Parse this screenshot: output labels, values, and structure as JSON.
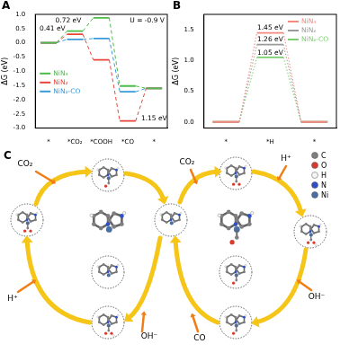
{
  "chart_data": [
    {
      "panel": "A",
      "type": "line",
      "subtitle": "U = -0.9 V",
      "y_label": "ΔG (eV)",
      "categories": [
        "*",
        "*CO₂",
        "*COOH",
        "*CO",
        "*"
      ],
      "series": [
        {
          "name": "NiN₄",
          "color": "#4cbb47",
          "line_style": "dashed",
          "values": [
            0,
            0.41,
            0.88,
            -1.52,
            -1.6
          ]
        },
        {
          "name": "NiN₂",
          "color": "#e8443a",
          "line_style": "dashed",
          "values": [
            0,
            0.3,
            -0.6,
            -2.75,
            -1.6
          ]
        },
        {
          "name": "NiN₂-CO",
          "color": "#3a9ad9",
          "line_style": "dashed",
          "values": [
            0,
            0.12,
            0.15,
            -1.72,
            -1.6
          ]
        }
      ],
      "ylim": [
        -3,
        1
      ],
      "yticks": [
        {
          "value": -3,
          "label": "-3.0"
        },
        -2.5,
        {
          "value": -2,
          "label": "-2.0"
        },
        -1.5,
        {
          "value": -1,
          "label": "-1.0"
        },
        -0.5,
        {
          "value": 0,
          "label": "0.0"
        },
        0.5,
        {
          "value": 1,
          "label": "1.0"
        }
      ],
      "annotations": [
        "0.41 eV",
        "0.72 eV",
        "1.15 eV"
      ],
      "legend": "center left",
      "grid": false
    },
    {
      "panel": "B",
      "type": "line",
      "y_label": "ΔG (eV)",
      "categories": [
        "*",
        "*H",
        "*"
      ],
      "series": [
        {
          "name": "NiN₄",
          "color": "#f4897e",
          "line_style": "dotted",
          "values": [
            0,
            1.45,
            0
          ]
        },
        {
          "name": "NiN₂",
          "color": "#9a9a9a",
          "line_style": "dotted",
          "values": [
            0,
            1.26,
            0
          ]
        },
        {
          "name": "NiN₂-CO",
          "color": "#7ccf6e",
          "line_style": "dotted",
          "values": [
            0,
            1.05,
            0
          ]
        }
      ],
      "ylim": [
        -0.1,
        1.75
      ],
      "yticks": [
        {
          "value": 0,
          "label": "0.0"
        },
        0.5,
        {
          "value": 1,
          "label": "1.0"
        },
        1.5
      ],
      "annotations": [
        "1.45 eV",
        "1.26 eV",
        "1.05 eV"
      ],
      "legend": "upper right",
      "grid": false
    }
  ],
  "diagram": {
    "panel": "C",
    "labels": [
      "CO₂",
      "CO₂",
      "H⁺",
      "H⁺",
      "OH⁻",
      "OH⁻",
      "CO"
    ],
    "atoms": [
      "C",
      "O",
      "H",
      "N",
      "Ni"
    ]
  }
}
